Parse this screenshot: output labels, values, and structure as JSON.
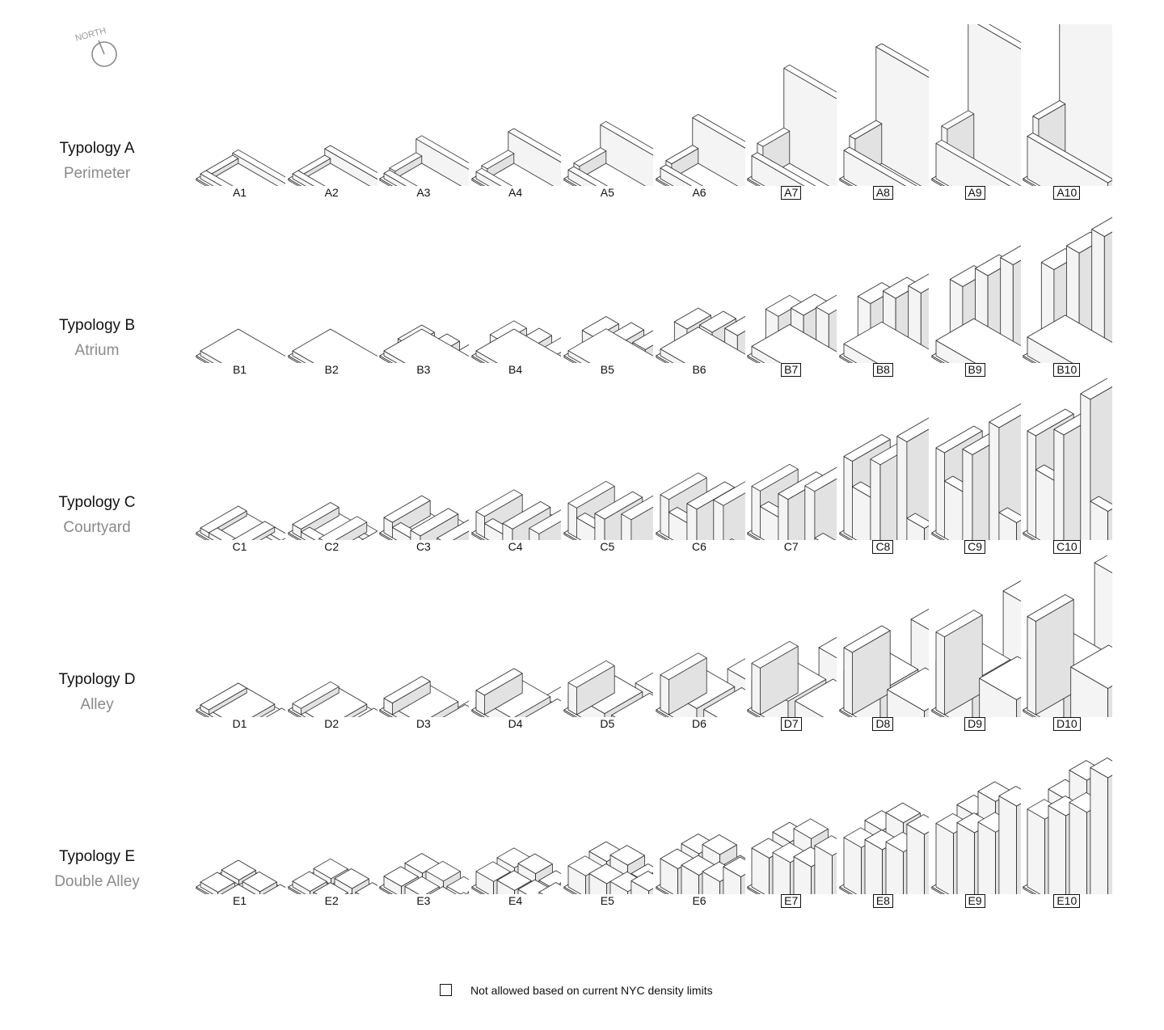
{
  "north_label": "NORTH",
  "typologies": [
    {
      "name": "Typology A",
      "subtitle": "Perimeter",
      "form": "perimeter",
      "heights": [
        0.05,
        0.08,
        0.15,
        0.2,
        0.25,
        0.3,
        0.65,
        0.8,
        1.0,
        1.2
      ],
      "labels": [
        "A1",
        "A2",
        "A3",
        "A4",
        "A5",
        "A6",
        "A7",
        "A8",
        "A9",
        "A10"
      ],
      "boxed": [
        false,
        false,
        false,
        false,
        false,
        false,
        true,
        true,
        true,
        true
      ]
    },
    {
      "name": "Typology B",
      "subtitle": "Atrium",
      "form": "atrium",
      "heights": [
        0.05,
        0.08,
        0.2,
        0.25,
        0.3,
        0.4,
        0.55,
        0.7,
        0.9,
        1.1
      ],
      "labels": [
        "B1",
        "B2",
        "B3",
        "B4",
        "B5",
        "B6",
        "B7",
        "B8",
        "B9",
        "B10"
      ],
      "boxed": [
        false,
        false,
        false,
        false,
        false,
        false,
        true,
        true,
        true,
        true
      ]
    },
    {
      "name": "Typology C",
      "subtitle": "Courtyard",
      "form": "courtyard",
      "heights": [
        0.05,
        0.1,
        0.18,
        0.25,
        0.35,
        0.45,
        0.55,
        0.9,
        1.0,
        1.2
      ],
      "labels": [
        "C1",
        "C2",
        "C3",
        "C4",
        "C5",
        "C6",
        "C7",
        "C8",
        "C9",
        "C10"
      ],
      "boxed": [
        false,
        false,
        false,
        false,
        false,
        false,
        false,
        true,
        true,
        true
      ]
    },
    {
      "name": "Typology D",
      "subtitle": "Alley",
      "form": "alley",
      "heights": [
        0.05,
        0.08,
        0.15,
        0.25,
        0.35,
        0.45,
        0.6,
        0.8,
        1.0,
        1.2
      ],
      "labels": [
        "D1",
        "D2",
        "D3",
        "D4",
        "D5",
        "D6",
        "D7",
        "D8",
        "D9",
        "D10"
      ],
      "boxed": [
        false,
        false,
        false,
        false,
        false,
        false,
        true,
        true,
        true,
        true
      ]
    },
    {
      "name": "Typology E",
      "subtitle": "Double Alley",
      "form": "double-alley",
      "heights": [
        0.05,
        0.08,
        0.15,
        0.22,
        0.3,
        0.4,
        0.55,
        0.7,
        0.9,
        1.1
      ],
      "labels": [
        "E1",
        "E2",
        "E3",
        "E4",
        "E5",
        "E6",
        "E7",
        "E8",
        "E9",
        "E10"
      ],
      "boxed": [
        false,
        false,
        false,
        false,
        false,
        false,
        true,
        true,
        true,
        true
      ]
    }
  ],
  "legend": {
    "text": "Not allowed based on current NYC density limits"
  }
}
